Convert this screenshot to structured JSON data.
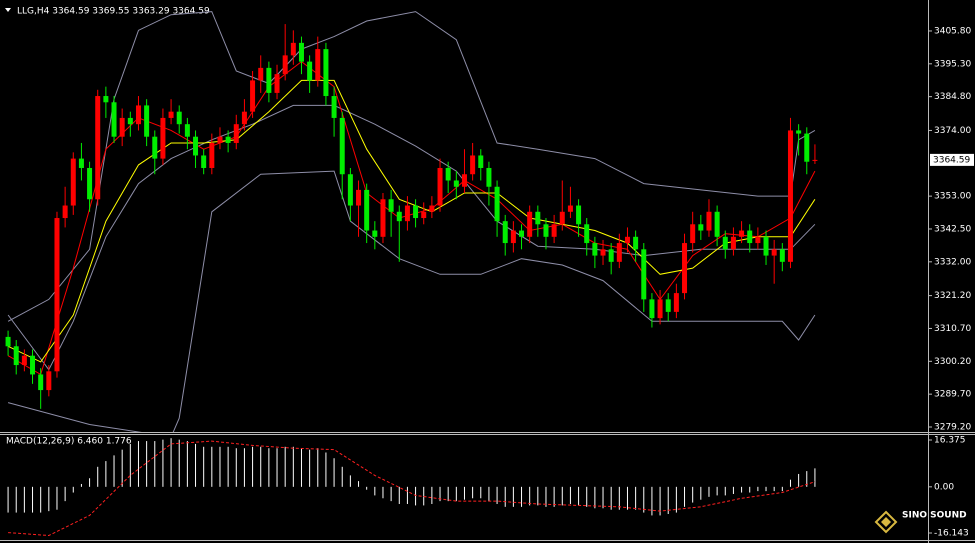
{
  "chart_data": [
    {
      "type": "candlestick",
      "title": "LLG,H4  3364.59 3369.55 3363.29 3364.59",
      "up_color": "#ff0000",
      "down_color": "#00ee00",
      "open": [
        3308,
        3305,
        3299,
        3302,
        3296,
        3291,
        3297,
        3346,
        3350,
        3365,
        3362,
        3352,
        3385,
        3383,
        3372,
        3378,
        3376,
        3382,
        3372,
        3365,
        3378,
        3380,
        3376,
        3372,
        3366,
        3362,
        3370,
        3372,
        3370,
        3376,
        3380,
        3390,
        3394,
        3386,
        3392,
        3398,
        3402,
        3396,
        3390,
        3400,
        3385,
        3378,
        3360,
        3350,
        3355,
        3342,
        3340,
        3352,
        3348,
        3345,
        3350,
        3346,
        3348,
        3350,
        3362,
        3358,
        3356,
        3360,
        3366,
        3362,
        3356,
        3345,
        3338,
        3342,
        3340,
        3348,
        3344,
        3340,
        3344,
        3348,
        3350,
        3344,
        3338,
        3334,
        3336,
        3332,
        3338,
        3340,
        3336,
        3320,
        3314,
        3320,
        3316,
        3322,
        3338,
        3344,
        3342,
        3348,
        3340,
        3336,
        3340,
        3342,
        3338,
        3340,
        3334,
        3336,
        3332,
        3374,
        3373,
        3364.59
      ],
      "high": [
        3310,
        3307,
        3304,
        3304,
        3298,
        3299,
        3348,
        3356,
        3367,
        3370,
        3364,
        3387,
        3388,
        3385,
        3381,
        3380,
        3385,
        3384,
        3374,
        3381,
        3384,
        3382,
        3378,
        3374,
        3368,
        3373,
        3375,
        3374,
        3379,
        3384,
        3393,
        3398,
        3396,
        3395,
        3408,
        3406,
        3404,
        3398,
        3404,
        3402,
        3388,
        3380,
        3362,
        3358,
        3357,
        3345,
        3354,
        3355,
        3350,
        3353,
        3352,
        3351,
        3353,
        3365,
        3364,
        3361,
        3368,
        3370,
        3368,
        3364,
        3358,
        3347,
        3345,
        3344,
        3350,
        3350,
        3346,
        3347,
        3358,
        3356,
        3352,
        3346,
        3340,
        3339,
        3338,
        3341,
        3343,
        3342,
        3338,
        3322,
        3323,
        3322,
        3325,
        3341,
        3348,
        3347,
        3352,
        3350,
        3342,
        3343,
        3345,
        3344,
        3343,
        3342,
        3339,
        3338,
        3378,
        3376,
        3375,
        3369.55
      ],
      "low": [
        3302,
        3296,
        3297,
        3293,
        3285,
        3289,
        3295,
        3343,
        3347,
        3358,
        3348,
        3350,
        3378,
        3370,
        3369,
        3372,
        3374,
        3369,
        3360,
        3363,
        3376,
        3373,
        3368,
        3362,
        3360,
        3360,
        3368,
        3367,
        3368,
        3374,
        3378,
        3386,
        3383,
        3384,
        3390,
        3395,
        3392,
        3386,
        3388,
        3382,
        3372,
        3352,
        3345,
        3340,
        3338,
        3336,
        3338,
        3340,
        3332,
        3342,
        3343,
        3344,
        3346,
        3348,
        3354,
        3352,
        3354,
        3358,
        3358,
        3350,
        3340,
        3334,
        3335,
        3336,
        3338,
        3340,
        3336,
        3338,
        3342,
        3346,
        3340,
        3334,
        3330,
        3331,
        3328,
        3330,
        3335,
        3332,
        3316,
        3311,
        3312,
        3313,
        3314,
        3320,
        3335,
        3339,
        3340,
        3337,
        3333,
        3334,
        3338,
        3335,
        3336,
        3331,
        3325,
        3329,
        3330,
        3366,
        3360,
        3363.29
      ],
      "close": [
        3305,
        3299,
        3302,
        3296,
        3291,
        3297,
        3346,
        3350,
        3365,
        3362,
        3352,
        3385,
        3383,
        3372,
        3378,
        3376,
        3382,
        3372,
        3365,
        3378,
        3380,
        3376,
        3372,
        3366,
        3362,
        3370,
        3372,
        3370,
        3376,
        3380,
        3390,
        3394,
        3386,
        3392,
        3398,
        3402,
        3396,
        3390,
        3400,
        3385,
        3378,
        3360,
        3350,
        3355,
        3342,
        3340,
        3352,
        3348,
        3345,
        3350,
        3346,
        3348,
        3350,
        3362,
        3358,
        3356,
        3360,
        3366,
        3362,
        3356,
        3345,
        3338,
        3342,
        3340,
        3348,
        3344,
        3340,
        3344,
        3348,
        3350,
        3344,
        3338,
        3334,
        3336,
        3332,
        3338,
        3340,
        3336,
        3320,
        3314,
        3320,
        3316,
        3322,
        3338,
        3344,
        3342,
        3348,
        3340,
        3336,
        3340,
        3342,
        3338,
        3340,
        3334,
        3336,
        3332,
        3374,
        3373,
        3364,
        3364.59
      ],
      "series": [
        {
          "color": "#8e8ea8",
          "x": [
            0,
            5,
            10,
            13,
            16,
            20,
            25,
            28,
            32,
            36,
            40,
            44,
            50,
            55,
            60,
            65,
            72,
            78,
            85,
            92,
            96,
            97,
            99
          ],
          "values": [
            3313,
            3320,
            3336,
            3384,
            3406,
            3411,
            3412,
            3393,
            3389,
            3400,
            3404,
            3409,
            3412,
            3403,
            3370,
            3368,
            3365,
            3357,
            3355,
            3353,
            3353,
            3371,
            3374
          ]
        },
        {
          "color": "#8e8ea8",
          "x": [
            0,
            5,
            8,
            12,
            16,
            20,
            25,
            30,
            35,
            40,
            45,
            50,
            55,
            60,
            65,
            72,
            78,
            85,
            92,
            96,
            99
          ],
          "values": [
            3315,
            3297.5,
            3313,
            3340,
            3357,
            3365,
            3371,
            3376,
            3382,
            3382,
            3376,
            3369,
            3361,
            3345,
            3337,
            3336,
            3334,
            3336,
            3336,
            3336,
            3344
          ]
        },
        {
          "color": "#8e8ea8",
          "x": [
            0,
            10,
            20,
            21,
            25,
            31,
            40,
            42,
            48,
            53,
            58,
            63,
            68,
            73,
            79,
            85,
            95,
            97,
            99
          ],
          "values": [
            3287,
            3280,
            3276,
            3282,
            3348,
            3360,
            3361,
            3345,
            3333,
            3328,
            3328,
            3333,
            3331,
            3326,
            3313,
            3313,
            3313,
            3307,
            3315
          ]
        },
        {
          "color": "#ff0000",
          "x": [
            0,
            4,
            8,
            12,
            16,
            20,
            24,
            28,
            32,
            36,
            40,
            44,
            48,
            52,
            56,
            60,
            64,
            68,
            72,
            76,
            80,
            84,
            88,
            92,
            96,
            99
          ],
          "values": [
            3302,
            3296,
            3330,
            3368,
            3378,
            3374,
            3368,
            3372,
            3388,
            3396,
            3388,
            3354,
            3346,
            3349,
            3358,
            3352,
            3342,
            3344,
            3338,
            3336,
            3320,
            3334,
            3341,
            3340,
            3346,
            3361
          ]
        },
        {
          "color": "#ffff00",
          "x": [
            0,
            4,
            8,
            12,
            16,
            20,
            24,
            28,
            32,
            36,
            40,
            44,
            48,
            52,
            56,
            60,
            64,
            68,
            72,
            76,
            80,
            84,
            88,
            92,
            96,
            99
          ],
          "values": [
            3305,
            3300,
            3315,
            3345,
            3363,
            3370,
            3370,
            3371,
            3380,
            3390,
            3390,
            3368,
            3352,
            3348,
            3354,
            3354,
            3346,
            3344,
            3342,
            3338,
            3328,
            3330,
            3338,
            3340,
            3340,
            3352
          ]
        }
      ],
      "ylim": [
        3277.6,
        3415.7
      ],
      "yticks": [
        {
          "value": 3405.8,
          "label": "3405.80"
        },
        {
          "value": 3395.3,
          "label": "3395.30"
        },
        {
          "value": 3384.8,
          "label": "3384.80"
        },
        {
          "value": 3374,
          "label": "3374.00"
        },
        {
          "value": 3353,
          "label": "3353.00"
        },
        {
          "value": 3342.5,
          "label": "3342.50"
        },
        {
          "value": 3332,
          "label": "3332.00"
        },
        {
          "value": 3321.2,
          "label": "3321.20"
        },
        {
          "value": 3310.7,
          "label": "3310.70"
        },
        {
          "value": 3300.2,
          "label": "3300.20"
        },
        {
          "value": 3289.7,
          "label": "3289.70"
        },
        {
          "value": 3279.2,
          "label": "3279.20"
        }
      ],
      "current_price": {
        "value": 3364.59,
        "label": "3364.59"
      }
    },
    {
      "type": "macd",
      "title": "MACD(12,26,9) 6.460 1.776",
      "color": "#ffffff",
      "values": [
        -9,
        -9,
        -9,
        -9,
        -9,
        -8.5,
        -8,
        -5,
        -2,
        1,
        3,
        7,
        9,
        11,
        13,
        15,
        16,
        16,
        16,
        16.5,
        17,
        16.5,
        16,
        15,
        14,
        14,
        14,
        14,
        13.5,
        13.5,
        14,
        14,
        13.5,
        13.5,
        14,
        14,
        13.5,
        13,
        13.5,
        12,
        10,
        7,
        4,
        2,
        -1,
        -3,
        -4,
        -5,
        -6,
        -6,
        -6.5,
        -6.5,
        -6,
        -5,
        -5,
        -5,
        -4.5,
        -4,
        -4,
        -5,
        -6,
        -7,
        -7,
        -7,
        -6.5,
        -6.5,
        -7,
        -7,
        -6.5,
        -6,
        -6.5,
        -7,
        -7.5,
        -7.5,
        -8,
        -8,
        -8,
        -8,
        -9,
        -10,
        -10,
        -9.5,
        -9,
        -7,
        -5.5,
        -4.5,
        -3.5,
        -3,
        -3,
        -2.5,
        -2,
        -2,
        -1.5,
        -1.5,
        -1.5,
        -1.5,
        2.5,
        4.5,
        5.5,
        6.46
      ],
      "signal": {
        "color": "#ff2020",
        "x": [
          0,
          5,
          10,
          15,
          20,
          25,
          30,
          35,
          40,
          45,
          50,
          55,
          60,
          65,
          70,
          75,
          80,
          85,
          90,
          95,
          99
        ],
        "values": [
          -16,
          -17,
          -10,
          4,
          15,
          16,
          14.5,
          13.5,
          13,
          4,
          -3,
          -5,
          -5,
          -6,
          -6.5,
          -7,
          -8.5,
          -7,
          -4,
          -2,
          1.776
        ]
      },
      "ylim": [
        -18.59,
        18.47
      ],
      "yticks": [
        16.375,
        {
          "value": 0,
          "label": "0.00"
        },
        -16.143
      ]
    }
  ],
  "watermark": "SINO SOUND"
}
